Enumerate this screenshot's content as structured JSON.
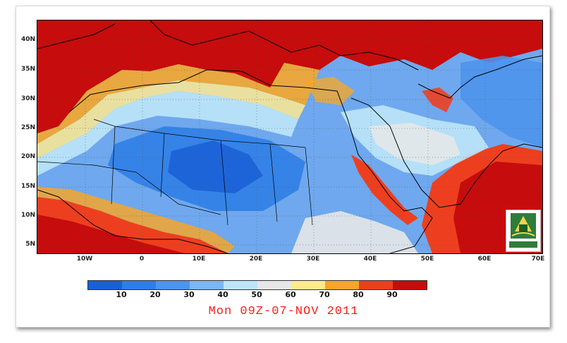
{
  "map": {
    "lat_labels": [
      "40N",
      "35N",
      "30N",
      "25N",
      "20N",
      "15N",
      "10N",
      "5N"
    ],
    "lon_labels": [
      "10W",
      "0",
      "10E",
      "20E",
      "30E",
      "40E",
      "50E",
      "60E",
      "70E"
    ]
  },
  "colorbar": {
    "colors": [
      "#1a5fd6",
      "#2f7ee6",
      "#4d94ec",
      "#7eb6f2",
      "#bde5f8",
      "#e7e7e7",
      "#ffea90",
      "#f5a62b",
      "#ed3f1f",
      "#c60c0c"
    ],
    "labels": [
      "10",
      "20",
      "30",
      "40",
      "50",
      "60",
      "70",
      "80",
      "90"
    ]
  },
  "date_text": "Mon 09Z-07-NOV 2011",
  "colors": {
    "date": "#ff1a1a",
    "deep_red": "#c60c0c",
    "red": "#ed3f1f",
    "orange": "#f5a62b",
    "yellow": "#ffea90",
    "grey": "#e7e7e7",
    "pale_blue": "#bde5f8",
    "light_blue": "#7eb6f2",
    "mid_blue": "#4d94ec",
    "blue": "#2f7ee6"
  }
}
